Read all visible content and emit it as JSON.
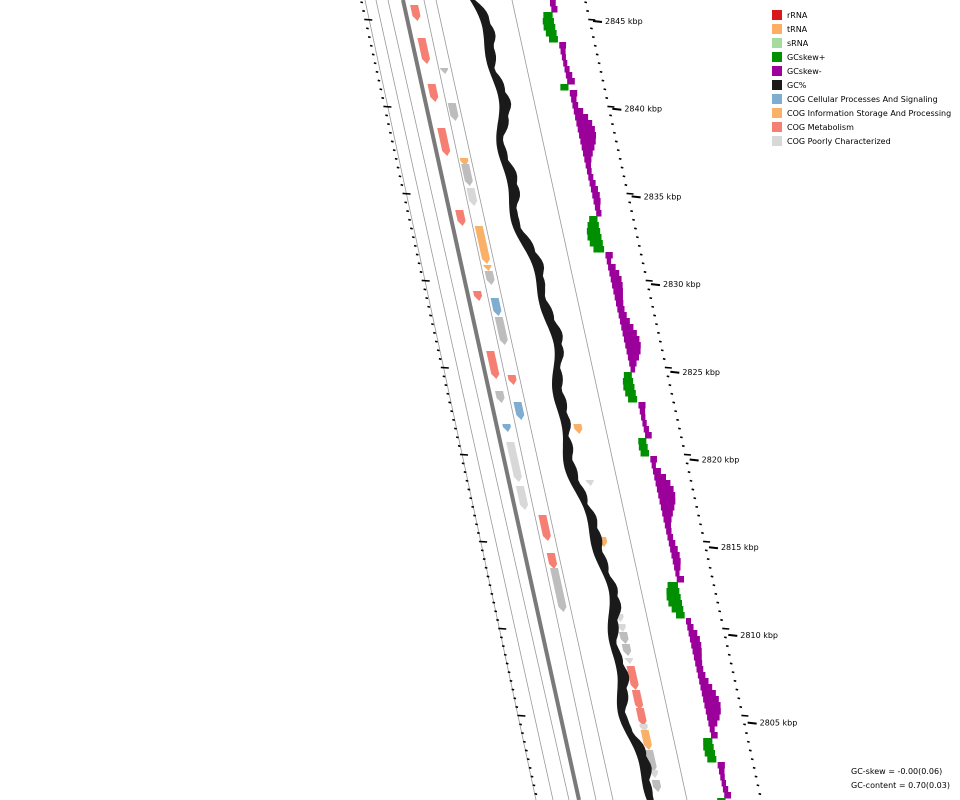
{
  "tick_labels": [
    "2845 kbp",
    "2840 kbp",
    "2835 kbp",
    "2830 kbp",
    "2825 kbp",
    "2820 kbp",
    "2815 kbp",
    "2810 kbp",
    "2805 kbp"
  ],
  "legend": [
    {
      "label": "rRNA",
      "color": "#d7191c"
    },
    {
      "label": "tRNA",
      "color": "#fdae61"
    },
    {
      "label": "sRNA",
      "color": "#a6dba0"
    },
    {
      "label": "GCskew+",
      "color": "#008f00"
    },
    {
      "label": "GCskew-",
      "color": "#9b009b"
    },
    {
      "label": "GC%",
      "color": "#1a1a1a"
    },
    {
      "label": "COG Cellular Processes And Signaling",
      "color": "#7fadd0"
    },
    {
      "label": "COG Information Storage And Processing",
      "color": "#f9b068"
    },
    {
      "label": "COG Metabolism",
      "color": "#f47f72"
    },
    {
      "label": "COG Poorly Characterized",
      "color": "#d8d8d8"
    }
  ],
  "stats": {
    "gc_skew": "GC-skew = -0.00(0.06)",
    "gc_content": "GC-content = 0.70(0.03)"
  }
}
